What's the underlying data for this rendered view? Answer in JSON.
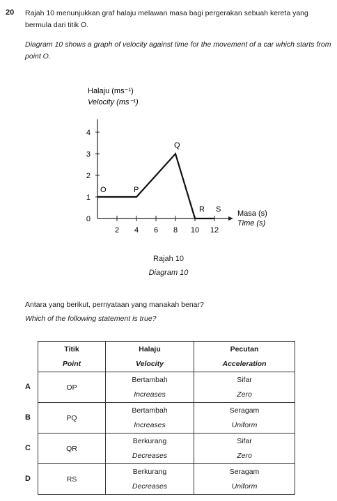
{
  "question": {
    "number": "20",
    "text_ms": "Rajah 10 menunjukkan graf halaju melawan masa bagi pergerakan sebuah kereta yang bermula dari titik O.",
    "text_en": "Diagram 10 shows a graph of velocity against time for the movement of a car which starts from point O.",
    "prompt_ms": "Antara yang berikut, pernyataan yang manakah benar?",
    "prompt_en": "Which of the following statement is true?"
  },
  "diagram": {
    "caption_ms": "Rajah 10",
    "caption_en": "Diagram 10"
  },
  "chart_data": {
    "type": "line",
    "ylabel_ms": "Halaju (ms⁻¹)",
    "ylabel_en": "Velocity (ms⁻¹)",
    "xlabel_ms": "Masa (s)",
    "xlabel_en": "Time (s)",
    "x_ticks": [
      2,
      4,
      6,
      8,
      10,
      12
    ],
    "y_ticks": [
      1,
      2,
      3,
      4
    ],
    "origin_label": "0",
    "xlim": [
      0,
      13.5
    ],
    "ylim": [
      0,
      5
    ],
    "points": [
      {
        "label": "O",
        "x": 0,
        "y": 1
      },
      {
        "label": "P",
        "x": 4,
        "y": 1
      },
      {
        "label": "Q",
        "x": 8,
        "y": 3
      },
      {
        "label": "R",
        "x": 10,
        "y": 0
      },
      {
        "label": "S",
        "x": 12,
        "y": 0
      }
    ]
  },
  "table": {
    "headers": [
      {
        "ms": "Titik",
        "en": "Point"
      },
      {
        "ms": "Halaju",
        "en": "Velocity"
      },
      {
        "ms": "Pecutan",
        "en": "Acceleration"
      }
    ],
    "rows": [
      {
        "option": "A",
        "point": "OP",
        "velocity_ms": "Bertambah",
        "velocity_en": "Increases",
        "accel_ms": "Sifar",
        "accel_en": "Zero"
      },
      {
        "option": "B",
        "point": "PQ",
        "velocity_ms": "Bertambah",
        "velocity_en": "Increases",
        "accel_ms": "Seragam",
        "accel_en": "Uniform"
      },
      {
        "option": "C",
        "point": "QR",
        "velocity_ms": "Berkurang",
        "velocity_en": "Decreases",
        "accel_ms": "Sifar",
        "accel_en": "Zero"
      },
      {
        "option": "D",
        "point": "RS",
        "velocity_ms": "Berkurang",
        "velocity_en": "Decreases",
        "accel_ms": "Seragam",
        "accel_en": "Uniform"
      }
    ]
  }
}
